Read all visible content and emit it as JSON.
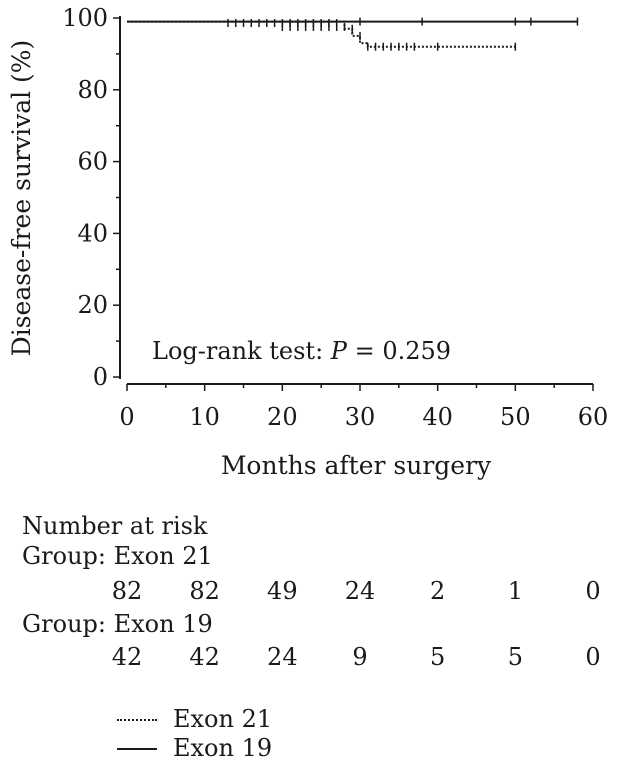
{
  "chart_data": {
    "type": "line",
    "step": true,
    "xlabel": "Months after surgery",
    "ylabel": "Disease-free survival (%)",
    "xlim": [
      0,
      60
    ],
    "ylim": [
      0,
      100
    ],
    "xticks": [
      0,
      10,
      20,
      30,
      40,
      50,
      60
    ],
    "yticks": [
      0,
      20,
      40,
      60,
      80,
      100
    ],
    "grid": false,
    "annotation": {
      "prefix": "Log-rank test: ",
      "italic": "P",
      "suffix": " = 0.259"
    },
    "series": [
      {
        "name": "Exon 21",
        "style": "dotted",
        "points": [
          [
            0,
            99
          ],
          [
            28,
            99
          ],
          [
            28,
            97
          ],
          [
            29,
            97
          ],
          [
            29,
            95
          ],
          [
            30,
            95
          ],
          [
            30,
            93
          ],
          [
            31,
            93
          ],
          [
            31,
            92
          ],
          [
            50,
            92
          ]
        ],
        "censors": [
          [
            13,
            98.6
          ],
          [
            14,
            98.6
          ],
          [
            15,
            98.6
          ],
          [
            16,
            98.6
          ],
          [
            17,
            98.6
          ],
          [
            18,
            98.6
          ],
          [
            19,
            98.6
          ],
          [
            20,
            98.6
          ],
          [
            21,
            98.6
          ],
          [
            22,
            98.6
          ],
          [
            23,
            98.6
          ],
          [
            24,
            98.6
          ],
          [
            25,
            98.6
          ],
          [
            26,
            98.6
          ],
          [
            27,
            98.6
          ],
          [
            29,
            97
          ],
          [
            30,
            95
          ],
          [
            31,
            92
          ],
          [
            32,
            92
          ],
          [
            33,
            92
          ],
          [
            34,
            92
          ],
          [
            35,
            92
          ],
          [
            36,
            92
          ],
          [
            37,
            92
          ],
          [
            40,
            92
          ],
          [
            50,
            92
          ]
        ]
      },
      {
        "name": "Exon 19",
        "style": "solid",
        "points": [
          [
            0,
            99
          ],
          [
            58,
            99
          ]
        ],
        "censors": [
          [
            20,
            97.5
          ],
          [
            21,
            97.5
          ],
          [
            22,
            97.5
          ],
          [
            23,
            97.5
          ],
          [
            24,
            97.5
          ],
          [
            25,
            97.5
          ],
          [
            26,
            97.5
          ],
          [
            27,
            97.5
          ],
          [
            28,
            97.5
          ],
          [
            30,
            99
          ],
          [
            38,
            99
          ],
          [
            50,
            99
          ],
          [
            52,
            99
          ],
          [
            58,
            99
          ]
        ]
      }
    ]
  },
  "risk_table": {
    "title": "Number at risk",
    "times": [
      0,
      10,
      20,
      30,
      40,
      50,
      60
    ],
    "groups": [
      {
        "label": "Group: Exon 21",
        "values": [
          "82",
          "82",
          "49",
          "24",
          "2",
          "1",
          "0"
        ]
      },
      {
        "label": "Group: Exon 19",
        "values": [
          "42",
          "42",
          "24",
          "9",
          "5",
          "5",
          "0"
        ]
      }
    ]
  },
  "legend": [
    {
      "label": "Exon 21",
      "style": "dotted"
    },
    {
      "label": "Exon 19",
      "style": "solid"
    }
  ]
}
